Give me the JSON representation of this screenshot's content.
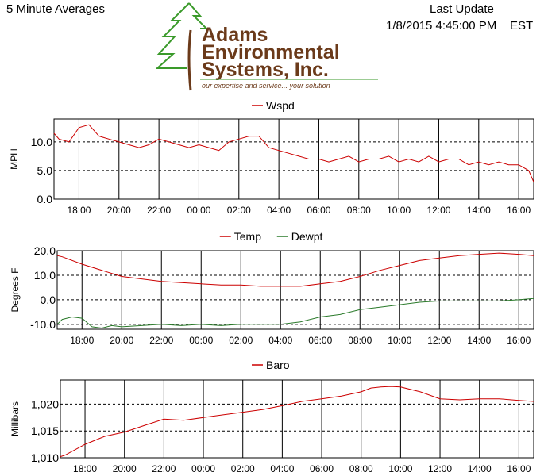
{
  "header": {
    "title": "5 Minute Averages",
    "update_label": "Last Update",
    "update_time": "1/8/2015 4:45:00 PM",
    "timezone": "EST"
  },
  "logo": {
    "line1": "Adams",
    "line2": "Environmental",
    "line3": "Systems, Inc.",
    "tagline": "our expertise and service... your solution",
    "tree_color": "#3a9a2a",
    "text_color": "#6b3a1a"
  },
  "chart_data": [
    {
      "type": "line",
      "title": "",
      "ylabel": "MPH",
      "xlabel": "",
      "ylim": [
        0,
        14
      ],
      "x_range": [
        16.75,
        40.75
      ],
      "x_ticks": [
        "18:00",
        "20:00",
        "22:00",
        "00:00",
        "02:00",
        "04:00",
        "06:00",
        "08:00",
        "10:00",
        "12:00",
        "14:00",
        "16:00"
      ],
      "y_ticks": [
        0,
        5,
        10
      ],
      "y_tick_labels": [
        "0.0",
        "5.0",
        "10.0"
      ],
      "grid": true,
      "legend": "top-center",
      "series": [
        {
          "name": "Wspd",
          "color": "#cc0000",
          "x": [
            16.75,
            17,
            17.5,
            18,
            18.5,
            19,
            19.5,
            20,
            20.5,
            21,
            21.5,
            22,
            22.5,
            23,
            23.5,
            24,
            24.5,
            25,
            25.5,
            26,
            26.5,
            27,
            27.5,
            28,
            28.5,
            29,
            29.5,
            30,
            30.5,
            31,
            31.5,
            32,
            32.5,
            33,
            33.5,
            34,
            34.5,
            35,
            35.5,
            36,
            36.5,
            37,
            37.5,
            38,
            38.5,
            39,
            39.5,
            40,
            40.5,
            40.75
          ],
          "y": [
            11.5,
            10.5,
            10,
            12.5,
            13,
            11,
            10.5,
            10,
            9.5,
            9,
            9.5,
            10.5,
            10,
            9.5,
            9,
            9.5,
            9,
            8.5,
            10,
            10.5,
            11,
            11,
            9,
            8.5,
            8,
            7.5,
            7,
            7,
            6.5,
            7,
            7.5,
            6.5,
            7,
            7,
            7.5,
            6.5,
            7,
            6.5,
            7.5,
            6.5,
            7,
            7,
            6,
            6.5,
            6,
            6.5,
            6,
            6,
            5,
            3
          ]
        }
      ]
    },
    {
      "type": "line",
      "title": "",
      "ylabel": "Degrees F",
      "xlabel": "",
      "ylim": [
        -12,
        20
      ],
      "x_range": [
        16.75,
        40.75
      ],
      "x_ticks": [
        "18:00",
        "20:00",
        "22:00",
        "00:00",
        "02:00",
        "04:00",
        "06:00",
        "08:00",
        "10:00",
        "12:00",
        "14:00",
        "16:00"
      ],
      "y_ticks": [
        -10,
        0,
        10,
        20
      ],
      "y_tick_labels": [
        "-10.0",
        "0.0",
        "10.0",
        "20.0"
      ],
      "grid": true,
      "legend": "top-center",
      "series": [
        {
          "name": "Temp",
          "color": "#cc0000",
          "x": [
            16.75,
            17,
            18,
            19,
            20,
            21,
            22,
            23,
            24,
            25,
            26,
            27,
            28,
            29,
            30,
            31,
            32,
            33,
            34,
            35,
            36,
            37,
            38,
            39,
            40,
            40.75
          ],
          "y": [
            18,
            17.5,
            14.5,
            12,
            9.5,
            8.5,
            7.5,
            7,
            6.5,
            6,
            6,
            5.5,
            5.5,
            5.5,
            6.5,
            7.5,
            9.5,
            12,
            14,
            16,
            17,
            18,
            18.5,
            19,
            18.5,
            18
          ]
        },
        {
          "name": "Dewpt",
          "color": "#2a7a2a",
          "x": [
            16.75,
            17,
            17.5,
            18,
            18.5,
            19,
            19.5,
            20,
            21,
            22,
            23,
            24,
            25,
            26,
            27,
            28,
            29,
            30,
            31,
            32,
            33,
            34,
            35,
            36,
            37,
            38,
            39,
            40,
            40.75
          ],
          "y": [
            -10,
            -8,
            -7,
            -7.5,
            -11,
            -11.5,
            -10.5,
            -11,
            -10.5,
            -10,
            -10.5,
            -10,
            -10.5,
            -10,
            -10,
            -10,
            -9,
            -7,
            -6,
            -4,
            -3,
            -2,
            -1,
            -0.5,
            -0.5,
            -0.5,
            -0.5,
            0,
            0.5
          ]
        }
      ]
    },
    {
      "type": "line",
      "title": "",
      "ylabel": "Millibars",
      "xlabel": "",
      "ylim": [
        1010,
        1024.5
      ],
      "x_range": [
        16.75,
        40.75
      ],
      "x_ticks": [
        "18:00",
        "20:00",
        "22:00",
        "00:00",
        "02:00",
        "04:00",
        "06:00",
        "08:00",
        "10:00",
        "12:00",
        "14:00",
        "16:00"
      ],
      "y_ticks": [
        1010,
        1015,
        1020
      ],
      "y_tick_labels": [
        "1,010",
        "1,015",
        "1,020"
      ],
      "grid": true,
      "legend": "top-center",
      "series": [
        {
          "name": "Baro",
          "color": "#cc0000",
          "x": [
            16.75,
            17,
            18,
            19,
            20,
            21,
            22,
            23,
            24,
            25,
            26,
            27,
            28,
            29,
            30,
            31,
            32,
            32.5,
            33,
            33.5,
            34,
            35,
            36,
            37,
            38,
            39,
            40,
            40.75
          ],
          "y": [
            1010.2,
            1010.5,
            1012.5,
            1014,
            1014.8,
            1016,
            1017.2,
            1017,
            1017.5,
            1018,
            1018.5,
            1019,
            1019.7,
            1020.5,
            1021,
            1021.5,
            1022.3,
            1023,
            1023.2,
            1023.3,
            1023.2,
            1022.3,
            1021,
            1020.8,
            1021,
            1021,
            1020.7,
            1020.5
          ]
        }
      ]
    }
  ]
}
